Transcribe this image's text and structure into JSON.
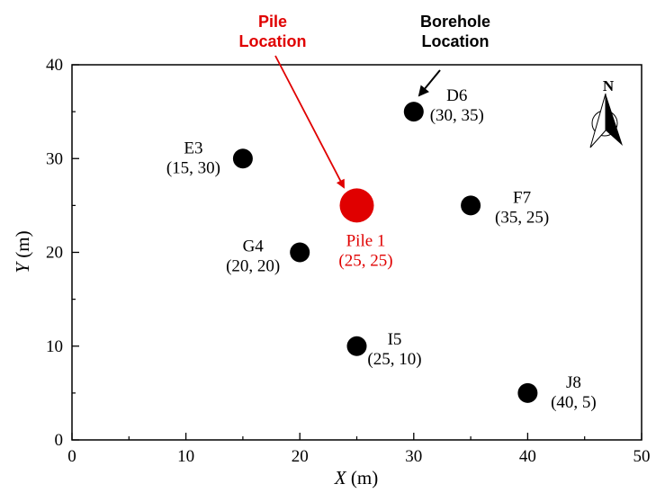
{
  "chart_data": {
    "type": "scatter",
    "title": "",
    "xlabel": {
      "var": "X",
      "unit": " (m)"
    },
    "ylabel": {
      "var": "Y",
      "unit": " (m)"
    },
    "xlim": [
      0,
      50
    ],
    "ylim": [
      0,
      40
    ],
    "xticks": [
      0,
      10,
      20,
      30,
      40,
      50
    ],
    "yticks": [
      0,
      10,
      20,
      30,
      40
    ],
    "grid": false,
    "series": [
      {
        "kind": "borehole",
        "color": "#000000",
        "points": [
          {
            "name": "D6",
            "coord": "(30, 35)",
            "x": 30,
            "y": 35
          },
          {
            "name": "E3",
            "coord": "(15, 30)",
            "x": 15,
            "y": 30
          },
          {
            "name": "F7",
            "coord": "(35, 25)",
            "x": 35,
            "y": 25
          },
          {
            "name": "G4",
            "coord": "(20, 20)",
            "x": 20,
            "y": 20
          },
          {
            "name": "I5",
            "coord": "(25, 10)",
            "x": 25,
            "y": 10
          },
          {
            "name": "J8",
            "coord": "(40, 5)",
            "x": 40,
            "y": 5
          }
        ]
      },
      {
        "kind": "pile",
        "color": "#e00000",
        "points": [
          {
            "name": "Pile 1",
            "coord": "(25, 25)",
            "x": 25,
            "y": 25
          }
        ]
      }
    ],
    "annotations": {
      "pile": {
        "line1": "Pile",
        "line2": "Location",
        "color": "#e00000"
      },
      "borehole": {
        "line1": "Borehole",
        "line2": "Location",
        "color": "#000000"
      }
    },
    "north_arrow": {
      "label": "N",
      "icon": "north-arrow-icon"
    }
  }
}
